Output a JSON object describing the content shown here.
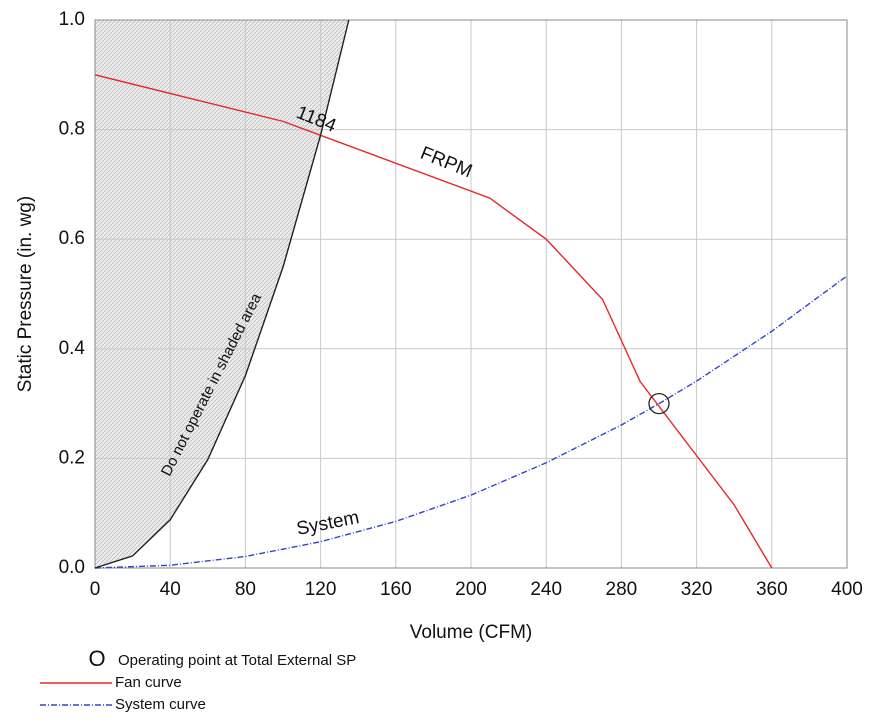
{
  "chart_data": {
    "type": "line",
    "x_label": "Volume (CFM)",
    "y_label": "Static Pressure (in. wg)",
    "xlim": [
      0,
      400
    ],
    "xticks": [
      0,
      40,
      80,
      120,
      160,
      200,
      240,
      280,
      320,
      360,
      400
    ],
    "ylim": [
      0,
      1
    ],
    "yticks": [
      {
        "value": 0,
        "label": "0.0"
      },
      0.2,
      0.4,
      0.6,
      0.8,
      {
        "value": 1,
        "label": "1.0"
      }
    ],
    "grid": true,
    "series": [
      {
        "name": "Fan curve",
        "color": "#e8262a",
        "style": "solid",
        "x": [
          0,
          100,
          210,
          240,
          270,
          290,
          340,
          360
        ],
        "values": [
          0.9,
          0.815,
          0.675,
          0.6,
          0.49,
          0.34,
          0.115,
          0
        ]
      },
      {
        "name": "System curve",
        "color": "#3344cc",
        "style": "dashdot",
        "x": [
          0,
          40,
          80,
          120,
          160,
          200,
          240,
          280,
          300,
          320,
          360,
          400
        ],
        "values": [
          0,
          0.005,
          0.021,
          0.048,
          0.085,
          0.133,
          0.192,
          0.261,
          0.3,
          0.341,
          0.432,
          0.533
        ]
      },
      {
        "color": "#222222",
        "style": "solid",
        "shade": true,
        "x": [
          0,
          20,
          40,
          60,
          80,
          100,
          120,
          135
        ],
        "values": [
          0,
          0.022,
          0.088,
          0.198,
          0.351,
          0.549,
          0.79,
          1.0
        ]
      }
    ],
    "operating_point": {
      "x": 300,
      "y": 0.3,
      "label": "Operating point at Total External SP",
      "marker": "O"
    },
    "annotations": [
      "1184",
      "FRPM",
      "System",
      "Do not operate in  shaded area"
    ]
  }
}
